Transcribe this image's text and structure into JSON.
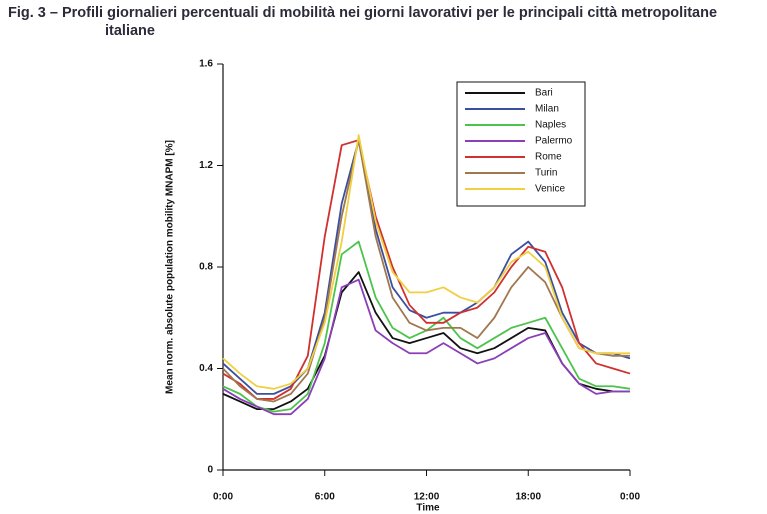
{
  "chart_data": {
    "type": "line",
    "title": "Fig. 3 – Profili giornalieri percentuali di mobilità nei giorni lavorativi per le principali città metropolitane italiane",
    "xlabel": "Time",
    "ylabel": "Mean norm. absolute population mobility MNAPM [%]",
    "x": [
      0,
      1,
      2,
      3,
      4,
      5,
      6,
      7,
      8,
      9,
      10,
      11,
      12,
      13,
      14,
      15,
      16,
      17,
      18,
      19,
      20,
      21,
      22,
      23,
      24
    ],
    "xlim": [
      0,
      24
    ],
    "xticks": [
      {
        "value": 0,
        "label": "0:00"
      },
      {
        "value": 6,
        "label": "6:00"
      },
      {
        "value": 12,
        "label": "12:00"
      },
      {
        "value": 18,
        "label": "18:00"
      },
      {
        "value": 24,
        "label": "0:00"
      }
    ],
    "ylim": [
      0,
      1.6
    ],
    "yticks": [
      0,
      0.4,
      0.8,
      1.2,
      1.6
    ],
    "grid": false,
    "legend": "upper right",
    "series": [
      {
        "name": "Bari",
        "color": "#111111",
        "values": [
          0.3,
          0.27,
          0.24,
          0.24,
          0.27,
          0.32,
          0.45,
          0.7,
          0.78,
          0.62,
          0.52,
          0.5,
          0.52,
          0.54,
          0.48,
          0.46,
          0.48,
          0.52,
          0.56,
          0.55,
          0.42,
          0.34,
          0.32,
          0.31,
          0.31
        ]
      },
      {
        "name": "Milan",
        "color": "#3a4fa0",
        "values": [
          0.42,
          0.36,
          0.3,
          0.3,
          0.33,
          0.4,
          0.62,
          1.05,
          1.3,
          0.95,
          0.72,
          0.63,
          0.6,
          0.62,
          0.62,
          0.66,
          0.72,
          0.85,
          0.9,
          0.82,
          0.62,
          0.5,
          0.46,
          0.46,
          0.44
        ]
      },
      {
        "name": "Naples",
        "color": "#4cc44c",
        "values": [
          0.33,
          0.3,
          0.25,
          0.23,
          0.24,
          0.3,
          0.5,
          0.85,
          0.9,
          0.68,
          0.56,
          0.52,
          0.55,
          0.6,
          0.52,
          0.48,
          0.52,
          0.56,
          0.58,
          0.6,
          0.48,
          0.36,
          0.33,
          0.33,
          0.32
        ]
      },
      {
        "name": "Palermo",
        "color": "#8a3fb8",
        "values": [
          0.32,
          0.28,
          0.25,
          0.22,
          0.22,
          0.28,
          0.44,
          0.72,
          0.75,
          0.55,
          0.5,
          0.46,
          0.46,
          0.5,
          0.46,
          0.42,
          0.44,
          0.48,
          0.52,
          0.54,
          0.42,
          0.34,
          0.3,
          0.31,
          0.31
        ]
      },
      {
        "name": "Rome",
        "color": "#d03030",
        "values": [
          0.38,
          0.34,
          0.28,
          0.28,
          0.32,
          0.45,
          0.92,
          1.28,
          1.3,
          1.0,
          0.8,
          0.65,
          0.58,
          0.58,
          0.62,
          0.64,
          0.7,
          0.8,
          0.88,
          0.86,
          0.72,
          0.5,
          0.42,
          0.4,
          0.38
        ]
      },
      {
        "name": "Turin",
        "color": "#a07850",
        "values": [
          0.4,
          0.33,
          0.28,
          0.27,
          0.3,
          0.38,
          0.6,
          1.0,
          1.3,
          0.92,
          0.68,
          0.58,
          0.55,
          0.56,
          0.56,
          0.52,
          0.6,
          0.72,
          0.8,
          0.74,
          0.6,
          0.48,
          0.46,
          0.45,
          0.45
        ]
      },
      {
        "name": "Venice",
        "color": "#f0d040",
        "values": [
          0.44,
          0.38,
          0.33,
          0.32,
          0.34,
          0.4,
          0.58,
          0.9,
          1.32,
          0.98,
          0.78,
          0.7,
          0.7,
          0.72,
          0.68,
          0.66,
          0.72,
          0.82,
          0.86,
          0.8,
          0.6,
          0.48,
          0.46,
          0.46,
          0.46
        ]
      }
    ]
  }
}
